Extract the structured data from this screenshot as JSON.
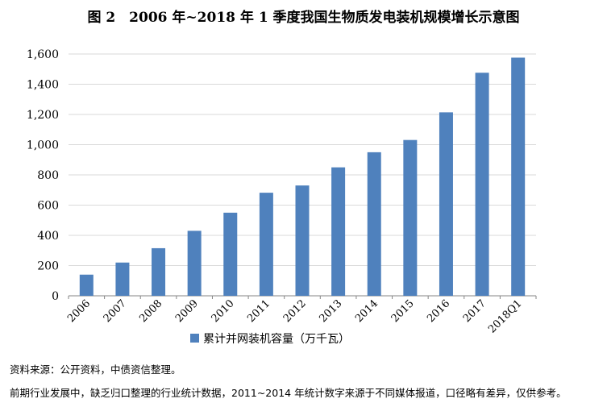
{
  "figure": {
    "title": "图 2　2006 年~2018 年 1 季度我国生物质发电装机规模增长示意图",
    "source": "资料来源：公开资料，中债资信整理。",
    "note": "前期行业发展中，缺乏归口整理的行业统计数据，2011~2014 年统计数字来源于不同媒体报道，口径略有差异，仅供参考。"
  },
  "chart_data": {
    "type": "bar",
    "title": "图 2　2006 年~2018 年 1 季度我国生物质发电装机规模增长示意图",
    "categories": [
      "2006",
      "2007",
      "2008",
      "2009",
      "2010",
      "2011",
      "2012",
      "2013",
      "2014",
      "2015",
      "2016",
      "2017",
      "2018Q1"
    ],
    "series": [
      {
        "name": "累计并网装机容量（万千瓦）",
        "values": [
          140,
          220,
          315,
          430,
          550,
          682,
          730,
          850,
          950,
          1031,
          1214,
          1476,
          1576
        ],
        "color": "#4f81bd"
      }
    ],
    "yticks": [
      "0",
      "200",
      "400",
      "600",
      "800",
      "1,000",
      "1,200",
      "1,400",
      "1,600"
    ],
    "ylim": [
      0,
      1600
    ],
    "grid": true,
    "legend_position": "bottom"
  }
}
